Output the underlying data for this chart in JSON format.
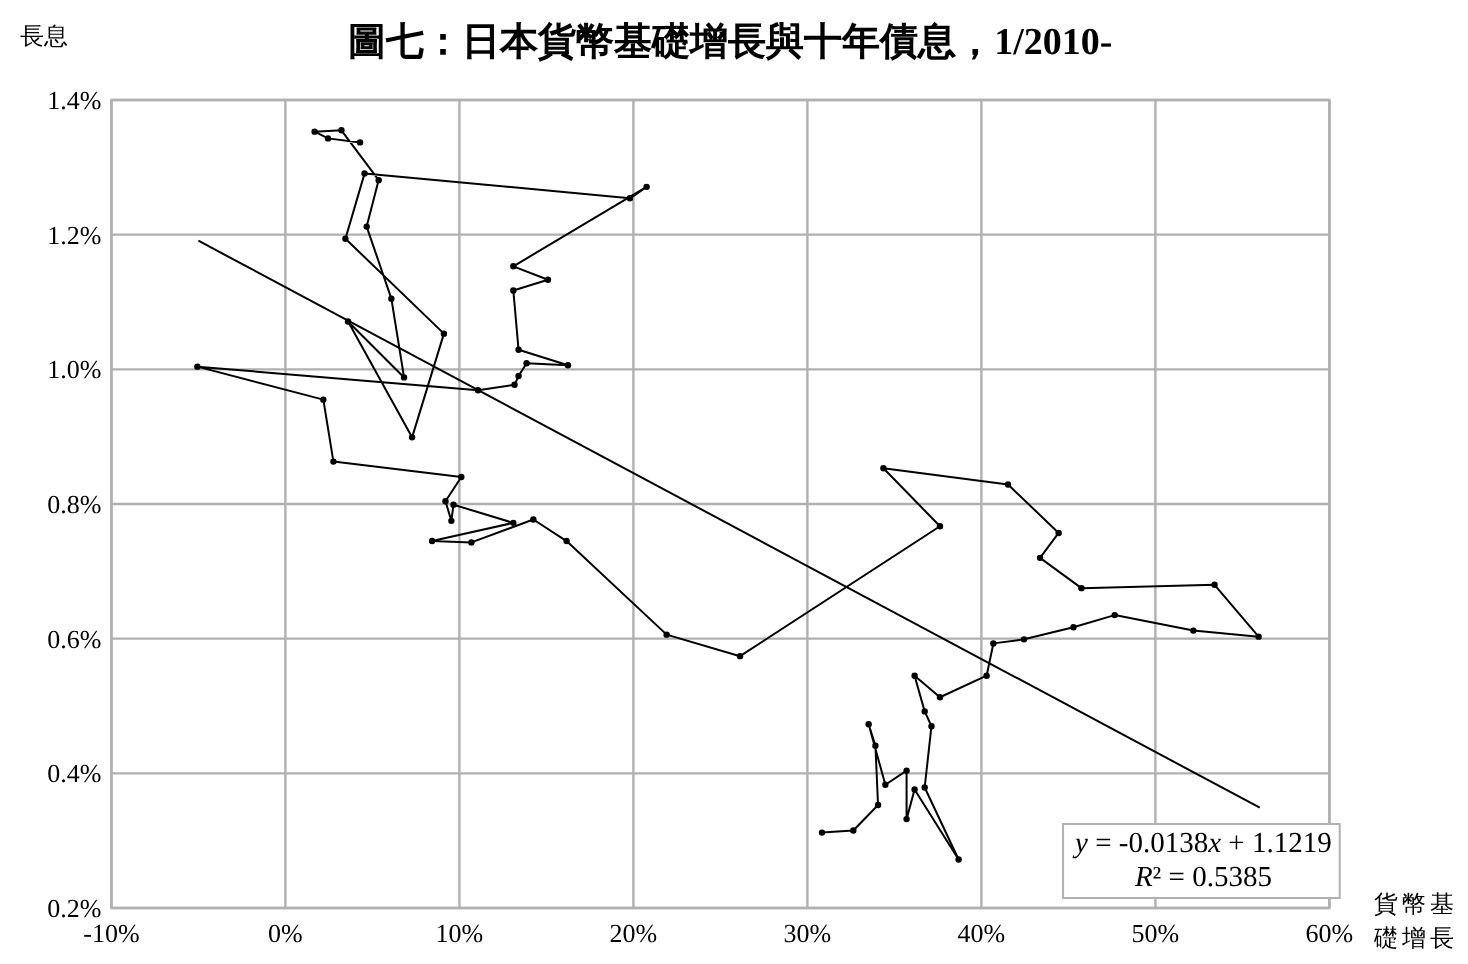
{
  "chart_data": {
    "type": "line",
    "title": "圖七：日本貨幣基礎增長與十年債息，1/2010-",
    "xlabel": "貨幣基礎增長",
    "ylabel": "長息",
    "xlim": [
      -10,
      60
    ],
    "xticks": [
      {
        "value": -10,
        "label": "-10%"
      },
      {
        "value": 0,
        "label": "0%"
      },
      {
        "value": 10,
        "label": "10%"
      },
      {
        "value": 20,
        "label": "20%"
      },
      {
        "value": 30,
        "label": "30%"
      },
      {
        "value": 40,
        "label": "40%"
      },
      {
        "value": 50,
        "label": "50%"
      },
      {
        "value": 60,
        "label": "60%"
      }
    ],
    "ylim": [
      0.2,
      1.4
    ],
    "yticks": [
      {
        "value": 0.2,
        "label": "0.2%"
      },
      {
        "value": 0.4,
        "label": "0.4%"
      },
      {
        "value": 0.6,
        "label": "0.6%"
      },
      {
        "value": 0.8,
        "label": "0.8%"
      },
      {
        "value": 1.0,
        "label": "1.0%"
      },
      {
        "value": 1.2,
        "label": "1.2%"
      },
      {
        "value": 1.4,
        "label": "1.4%"
      }
    ],
    "grid": true,
    "series": [
      {
        "color": "#000000",
        "marker": "circle",
        "x": [
          4.29,
          2.45,
          1.68,
          3.22,
          5.36,
          4.67,
          6.09,
          6.82,
          3.6,
          7.28,
          9.11,
          3.45,
          4.55,
          19.8,
          20.76,
          13.1,
          15.09,
          13.1,
          13.4,
          16.24,
          13.86,
          13.4,
          13.17,
          11.07,
          -5.06,
          2.18,
          2.76,
          10.11,
          9.2,
          9.54,
          9.66,
          13.1,
          8.43,
          10.69,
          14.25,
          16.16,
          21.91,
          26.13,
          37.62,
          34.37,
          41.53,
          44.44,
          43.37,
          45.75,
          53.4,
          55.93,
          52.18,
          47.66,
          45.29,
          42.45,
          40.69,
          40.3,
          37.62,
          36.16,
          36.74,
          37.13,
          36.74,
          38.69,
          36.16,
          35.7,
          35.7,
          34.48,
          33.52,
          33.91,
          34.06,
          32.64,
          30.84
        ],
        "values": [
          1.337,
          1.343,
          1.353,
          1.355,
          1.281,
          1.212,
          1.105,
          0.988,
          1.071,
          0.899,
          1.053,
          1.194,
          1.291,
          1.254,
          1.271,
          1.153,
          1.133,
          1.117,
          1.029,
          1.006,
          1.009,
          0.99,
          0.977,
          0.969,
          1.004,
          0.955,
          0.863,
          0.84,
          0.804,
          0.775,
          0.799,
          0.772,
          0.745,
          0.743,
          0.777,
          0.745,
          0.606,
          0.574,
          0.767,
          0.853,
          0.829,
          0.757,
          0.72,
          0.675,
          0.68,
          0.603,
          0.612,
          0.635,
          0.617,
          0.599,
          0.593,
          0.545,
          0.513,
          0.545,
          0.492,
          0.47,
          0.379,
          0.272,
          0.376,
          0.332,
          0.404,
          0.383,
          0.473,
          0.441,
          0.353,
          0.315,
          0.312
        ]
      },
      {
        "color": "#000000",
        "marker": "none",
        "x": [
          -5,
          56
        ],
        "values": [
          1.191,
          0.349
        ]
      }
    ],
    "annotations": [
      "y = -0.0138x + 1.1219",
      "R² = 0.5385"
    ]
  }
}
